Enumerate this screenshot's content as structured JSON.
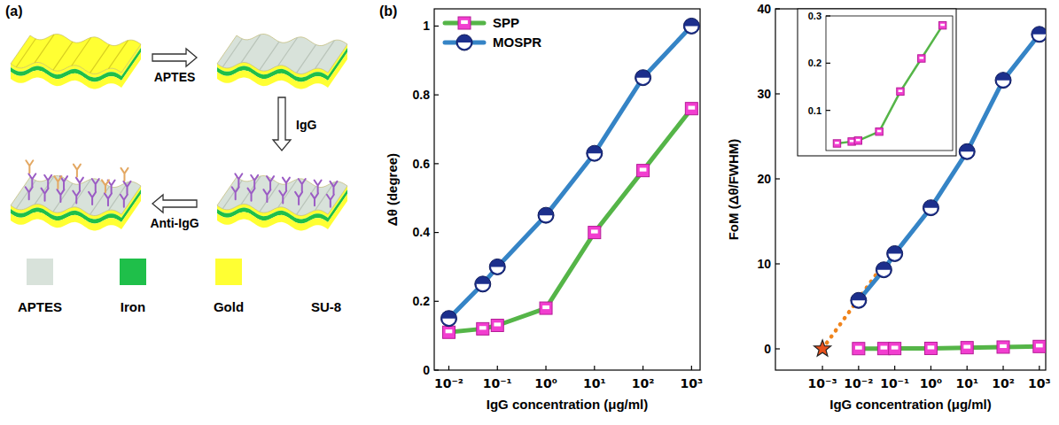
{
  "panels": {
    "a": "(a)",
    "b": "(b)"
  },
  "diagram": {
    "steps": [
      "APTES",
      "IgG",
      "Anti-IgG"
    ],
    "legend": [
      {
        "label": "APTES",
        "color": "#d8e2da"
      },
      {
        "label": "Iron",
        "color": "#1fbf4a"
      },
      {
        "label": "Gold",
        "color": "#ffff33"
      },
      {
        "label": "SU-8",
        "color": "#ffffff"
      }
    ]
  },
  "chart_data": [
    {
      "type": "line",
      "log": "x",
      "xlabel": "IgG concentration (μg/ml)",
      "ylabel": "Δθ (degree)",
      "xlim": [
        0.005,
        1500
      ],
      "ylim": [
        0,
        1.05
      ],
      "xticks": [
        {
          "value": 0.01,
          "label": "10⁻²"
        },
        {
          "value": 0.1,
          "label": "10⁻¹"
        },
        {
          "value": 1,
          "label": "10⁰"
        },
        {
          "value": 10,
          "label": "10¹"
        },
        {
          "value": 100,
          "label": "10²"
        },
        {
          "value": 1000,
          "label": "10³"
        }
      ],
      "yticks": [
        0,
        0.2,
        0.4,
        0.6,
        0.8,
        1
      ],
      "legend": "upper left",
      "x": [
        0.01,
        0.05,
        0.1,
        1,
        10,
        100,
        1000
      ],
      "series": [
        {
          "name": "SPP",
          "color": "#55b548",
          "marker": "square",
          "values": [
            0.11,
            0.12,
            0.13,
            0.18,
            0.4,
            0.58,
            0.76
          ]
        },
        {
          "name": "MOSPR",
          "color": "#3584c6",
          "marker": "circle",
          "values": [
            0.15,
            0.25,
            0.3,
            0.45,
            0.63,
            0.85,
            1.0
          ]
        }
      ]
    },
    {
      "type": "line",
      "log": "x",
      "xlabel": "IgG concentration (μg/ml)",
      "ylabel": "FoM (Δθ/FWHM)",
      "xlim": [
        5e-05,
        1500
      ],
      "ylim": [
        -2.5,
        40
      ],
      "xticks": [
        {
          "value": 0.001,
          "label": "10⁻³"
        },
        {
          "value": 0.01,
          "label": "10⁻²"
        },
        {
          "value": 0.1,
          "label": "10⁻¹"
        },
        {
          "value": 1,
          "label": "10⁰"
        },
        {
          "value": 10,
          "label": "10¹"
        },
        {
          "value": 100,
          "label": "10²"
        },
        {
          "value": 1000,
          "label": "10³"
        }
      ],
      "yticks": [
        0,
        10,
        20,
        30,
        40
      ],
      "series": [
        {
          "color": "#f0841c",
          "marker": "none",
          "line_style": "dotted",
          "x": [
            0.001,
            0.05
          ],
          "values": [
            0,
            10
          ]
        },
        {
          "color": "#3584c6",
          "marker": "circle",
          "x": [
            0.01,
            0.05,
            0.1,
            1,
            10,
            100,
            1000
          ],
          "values": [
            5.7,
            9.3,
            11.2,
            16.6,
            23.2,
            31.6,
            37.0
          ]
        },
        {
          "color": "#55b548",
          "marker": "square",
          "x": [
            0.01,
            0.05,
            0.1,
            1,
            10,
            100,
            1000
          ],
          "values": [
            0.03,
            0.034,
            0.036,
            0.055,
            0.14,
            0.21,
            0.28
          ]
        },
        {
          "color": "#e8501a",
          "marker": "star",
          "line_style": "none",
          "x": [
            0.001
          ],
          "values": [
            0
          ]
        }
      ]
    },
    {
      "type": "line",
      "log": "x",
      "xlim": [
        0.003,
        3000
      ],
      "ylim": [
        0.015,
        0.3
      ],
      "yticks": [
        0.1,
        0.2,
        0.3
      ],
      "tick_labels": "y",
      "x": [
        0.01,
        0.05,
        0.1,
        1,
        10,
        100,
        1000
      ],
      "series": [
        {
          "color": "#55b548",
          "marker": "square",
          "values": [
            0.03,
            0.034,
            0.036,
            0.055,
            0.14,
            0.21,
            0.28
          ]
        }
      ]
    }
  ]
}
